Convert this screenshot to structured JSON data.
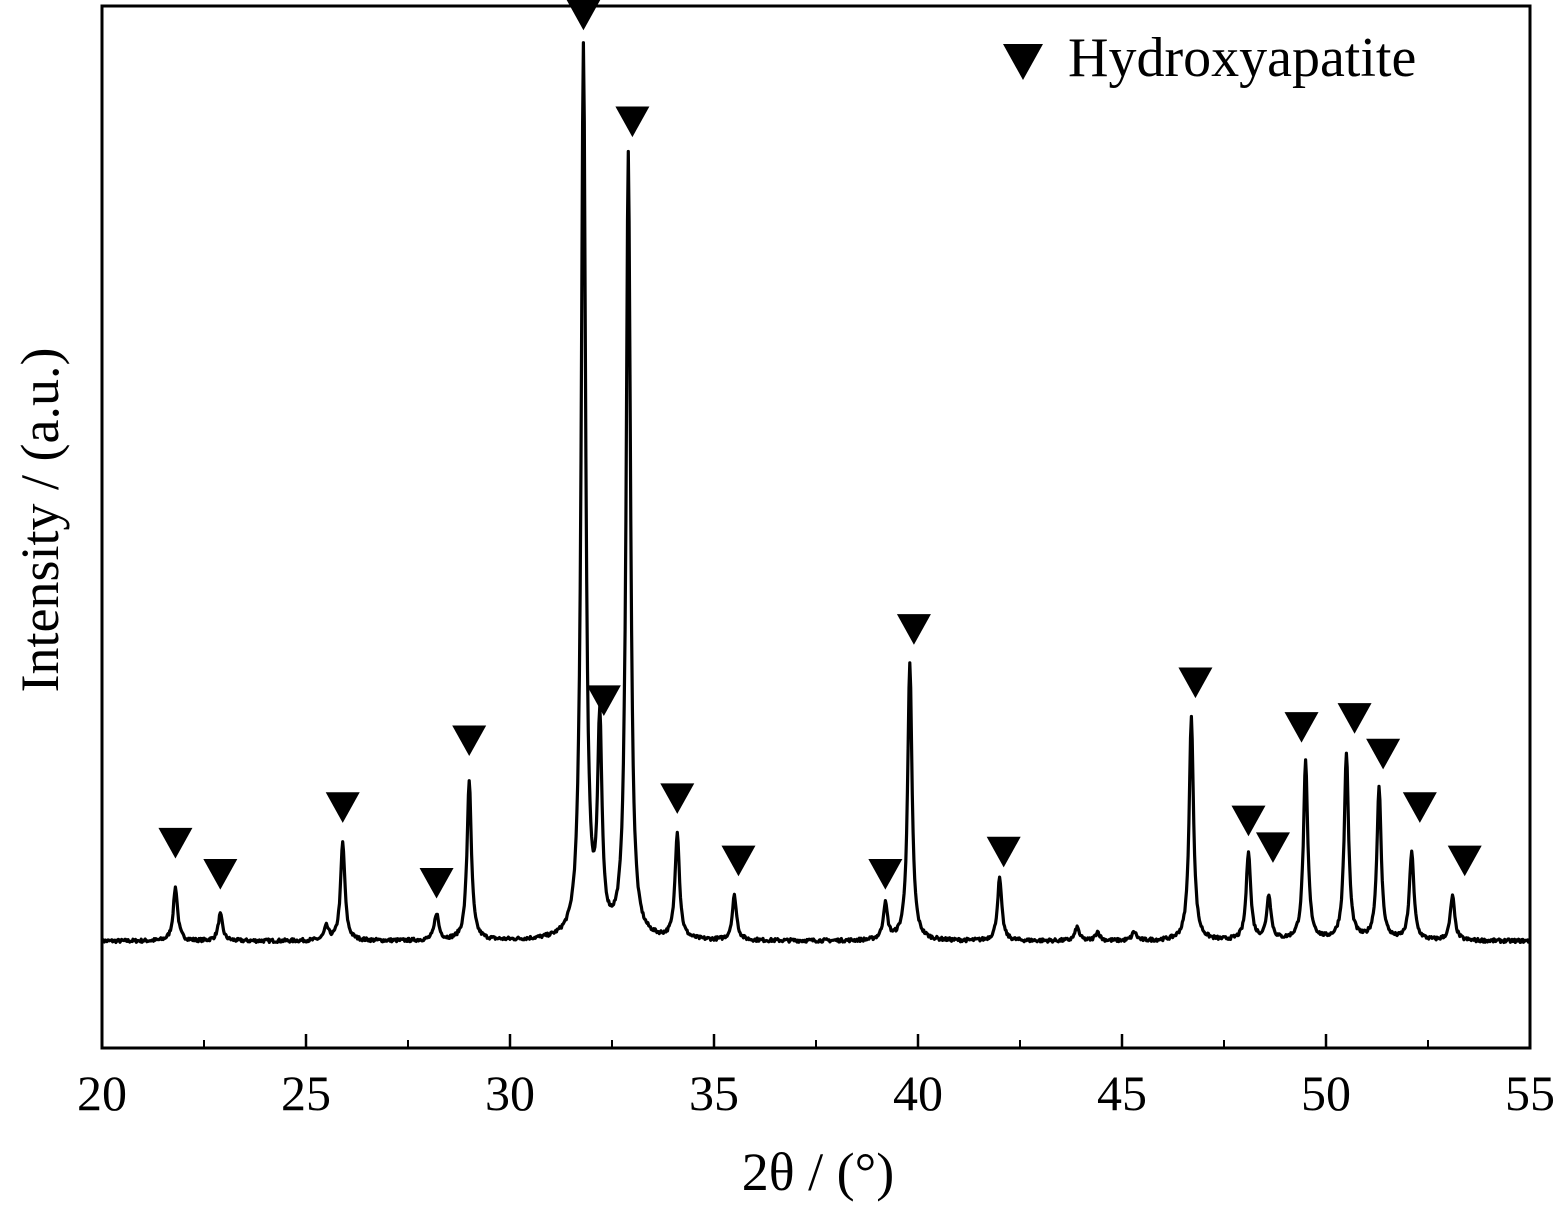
{
  "chart_data": {
    "type": "line",
    "title": "",
    "xlabel": "2θ / (°)",
    "ylabel": "Intensity / (a.u.)",
    "xlim": [
      20,
      55
    ],
    "ylim": [
      -0.12,
      1.05
    ],
    "x_ticks": [
      20,
      25,
      30,
      35,
      40,
      45,
      50,
      55
    ],
    "x_tick_labels": [
      "20",
      "25",
      "30",
      "35",
      "40",
      "45",
      "50",
      "55"
    ],
    "minor_x_step": 2.5,
    "y_ticks_shown": false,
    "grid": false,
    "legend": {
      "position": "top-right",
      "entries": [
        {
          "marker": "down-triangle-icon",
          "label": "Hydroxyapatite"
        }
      ]
    },
    "background_level": 0.0,
    "peaks": [
      {
        "x": 21.8,
        "height": 0.06
      },
      {
        "x": 22.9,
        "height": 0.03
      },
      {
        "x": 25.5,
        "height": 0.015
      },
      {
        "x": 25.9,
        "height": 0.11
      },
      {
        "x": 28.2,
        "height": 0.03
      },
      {
        "x": 29.0,
        "height": 0.18
      },
      {
        "x": 31.8,
        "height": 1.0
      },
      {
        "x": 32.2,
        "height": 0.23
      },
      {
        "x": 32.9,
        "height": 0.88
      },
      {
        "x": 34.1,
        "height": 0.12
      },
      {
        "x": 35.5,
        "height": 0.05
      },
      {
        "x": 39.2,
        "height": 0.04
      },
      {
        "x": 39.8,
        "height": 0.31
      },
      {
        "x": 42.0,
        "height": 0.07
      },
      {
        "x": 43.9,
        "height": 0.015
      },
      {
        "x": 44.4,
        "height": 0.01
      },
      {
        "x": 45.3,
        "height": 0.01
      },
      {
        "x": 46.7,
        "height": 0.25
      },
      {
        "x": 48.1,
        "height": 0.1
      },
      {
        "x": 48.6,
        "height": 0.05
      },
      {
        "x": 49.5,
        "height": 0.2
      },
      {
        "x": 50.5,
        "height": 0.21
      },
      {
        "x": 51.3,
        "height": 0.17
      },
      {
        "x": 52.1,
        "height": 0.1
      },
      {
        "x": 53.1,
        "height": 0.05
      }
    ],
    "marker_positions": [
      {
        "x": 21.8,
        "y": 0.11
      },
      {
        "x": 22.9,
        "y": 0.075
      },
      {
        "x": 25.9,
        "y": 0.15
      },
      {
        "x": 28.2,
        "y": 0.065
      },
      {
        "x": 29.0,
        "y": 0.225
      },
      {
        "x": 31.8,
        "y": 1.04
      },
      {
        "x": 32.3,
        "y": 0.27
      },
      {
        "x": 33.0,
        "y": 0.92
      },
      {
        "x": 34.1,
        "y": 0.16
      },
      {
        "x": 35.6,
        "y": 0.09
      },
      {
        "x": 39.2,
        "y": 0.075
      },
      {
        "x": 39.9,
        "y": 0.35
      },
      {
        "x": 42.1,
        "y": 0.1
      },
      {
        "x": 46.8,
        "y": 0.29
      },
      {
        "x": 48.1,
        "y": 0.135
      },
      {
        "x": 48.7,
        "y": 0.105
      },
      {
        "x": 49.4,
        "y": 0.24
      },
      {
        "x": 50.7,
        "y": 0.25
      },
      {
        "x": 51.4,
        "y": 0.21
      },
      {
        "x": 52.3,
        "y": 0.15
      },
      {
        "x": 53.4,
        "y": 0.09
      }
    ]
  }
}
